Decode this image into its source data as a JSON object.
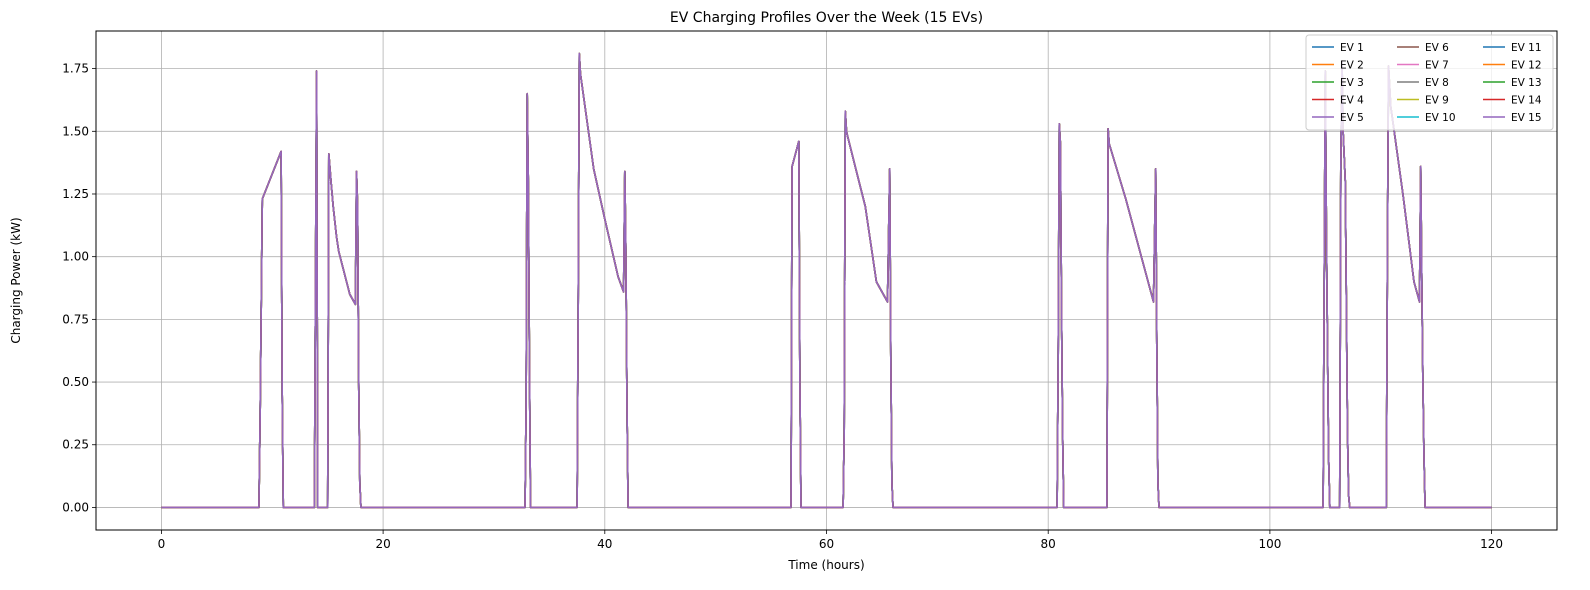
{
  "chart_data": {
    "type": "line",
    "title": "EV Charging Profiles Over the Week (15 EVs)",
    "xlabel": "Time (hours)",
    "ylabel": "Charging Power (kW)",
    "xlim": [
      -5.9,
      125.9
    ],
    "ylim": [
      -0.09,
      1.9
    ],
    "xticks": [
      0,
      20,
      40,
      60,
      80,
      100,
      120
    ],
    "yticks": [
      0.0,
      0.25,
      0.5,
      0.75,
      1.0,
      1.25,
      1.5,
      1.75
    ],
    "ytick_labels": [
      "0.00",
      "0.25",
      "0.50",
      "0.75",
      "1.00",
      "1.25",
      "1.50",
      "1.75"
    ],
    "grid": true,
    "legend": {
      "location": "top-right",
      "columns": 3
    },
    "series": [
      {
        "name": "EV 1",
        "color": "#1f77b4"
      },
      {
        "name": "EV 2",
        "color": "#ff7f0e"
      },
      {
        "name": "EV 3",
        "color": "#2ca02c"
      },
      {
        "name": "EV 4",
        "color": "#d62728"
      },
      {
        "name": "EV 5",
        "color": "#9467bd"
      },
      {
        "name": "EV 6",
        "color": "#8c564b"
      },
      {
        "name": "EV 7",
        "color": "#e377c2"
      },
      {
        "name": "EV 8",
        "color": "#7f7f7f"
      },
      {
        "name": "EV 9",
        "color": "#bcbd22"
      },
      {
        "name": "EV 10",
        "color": "#17becf"
      },
      {
        "name": "EV 11",
        "color": "#1f77b4"
      },
      {
        "name": "EV 12",
        "color": "#ff7f0e"
      },
      {
        "name": "EV 13",
        "color": "#2ca02c"
      },
      {
        "name": "EV 14",
        "color": "#d62728"
      },
      {
        "name": "EV 15",
        "color": "#9467bd"
      }
    ],
    "profile": {
      "x": [
        0,
        8.8,
        8.9,
        9.1,
        10.8,
        10.9,
        11.0,
        13.8,
        13.9,
        14.0,
        14.1,
        14.5,
        15.0,
        15.1,
        15.3,
        15.5,
        15.8,
        16.0,
        17.0,
        17.5,
        17.6,
        17.7,
        17.8,
        17.9,
        18.0,
        32.8,
        32.9,
        33.0,
        33.1,
        33.2,
        33.3,
        33.4,
        37.5,
        37.6,
        37.7,
        37.8,
        39.0,
        40.0,
        41.2,
        41.7,
        41.8,
        41.9,
        42.0,
        42.1,
        56.8,
        56.9,
        57.5,
        57.6,
        57.7,
        61.5,
        61.6,
        61.7,
        61.8,
        61.9,
        63.5,
        64.5,
        65.5,
        65.7,
        65.8,
        65.9,
        66.0,
        80.8,
        80.9,
        81.0,
        81.1,
        81.2,
        81.3,
        81.4,
        85.3,
        85.4,
        85.5,
        87.0,
        89.5,
        89.7,
        89.8,
        89.9,
        90.0,
        104.8,
        104.9,
        105.0,
        105.1,
        105.3,
        105.4,
        105.6,
        106.3,
        106.4,
        106.5,
        106.6,
        106.8,
        107.0,
        107.1,
        107.2,
        110.5,
        110.6,
        110.7,
        110.9,
        112.0,
        113.0,
        113.5,
        113.6,
        113.7,
        113.8,
        113.9,
        114.0,
        120.0
      ],
      "y": [
        0,
        0,
        0.35,
        1.23,
        1.42,
        0.45,
        0,
        0,
        0.9,
        1.74,
        0.0,
        0.0,
        0.0,
        1.41,
        1.3,
        1.2,
        1.08,
        1.02,
        0.85,
        0.81,
        1.34,
        1.2,
        0.5,
        0.1,
        0,
        0,
        0.4,
        1.65,
        1.3,
        0.6,
        0.0,
        0,
        0,
        0.8,
        1.81,
        1.73,
        1.35,
        1.15,
        0.92,
        0.86,
        1.34,
        1.0,
        0.4,
        0,
        0,
        1.36,
        1.46,
        0.5,
        0,
        0,
        0.3,
        1.58,
        1.5,
        1.48,
        1.2,
        0.9,
        0.82,
        1.35,
        0.6,
        0.1,
        0,
        0,
        0.6,
        1.53,
        1.45,
        0.8,
        0.3,
        0,
        0,
        1.51,
        1.45,
        1.23,
        0.82,
        1.35,
        0.65,
        0.1,
        0,
        0,
        0.9,
        1.74,
        1.1,
        0.2,
        0,
        0,
        0,
        1.35,
        1.78,
        1.5,
        1.3,
        0.3,
        0.05,
        0,
        0,
        1.0,
        1.76,
        1.6,
        1.25,
        0.9,
        0.82,
        1.36,
        0.9,
        0.5,
        0.2,
        0,
        0
      ]
    }
  }
}
